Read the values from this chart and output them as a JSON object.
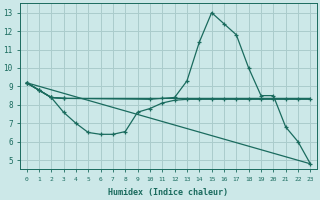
{
  "xlabel": "Humidex (Indice chaleur)",
  "bg_color": "#cce8e8",
  "grid_color": "#aacccc",
  "line_color": "#1a6b5e",
  "xlim": [
    -0.5,
    23.5
  ],
  "ylim": [
    4.5,
    13.5
  ],
  "yticks": [
    5,
    6,
    7,
    8,
    9,
    10,
    11,
    12,
    13
  ],
  "xticks": [
    0,
    1,
    2,
    3,
    4,
    5,
    6,
    7,
    8,
    9,
    10,
    11,
    12,
    13,
    14,
    15,
    16,
    17,
    18,
    19,
    20,
    21,
    22,
    23
  ],
  "series": [
    {
      "x": [
        0,
        1,
        2,
        3,
        10,
        11,
        12,
        13,
        14,
        15,
        16,
        17,
        18,
        19,
        20,
        21,
        22,
        23
      ],
      "y": [
        9.2,
        8.8,
        8.4,
        8.35,
        8.3,
        8.35,
        8.4,
        9.3,
        11.4,
        13.0,
        12.4,
        11.8,
        10.0,
        8.5,
        8.5,
        6.8,
        6.0,
        4.8
      ]
    },
    {
      "x": [
        0,
        1,
        2,
        3,
        23
      ],
      "y": [
        9.2,
        8.8,
        8.4,
        8.35,
        8.35
      ]
    },
    {
      "x": [
        0,
        1,
        2,
        3,
        4,
        5,
        6,
        7,
        8,
        9,
        10,
        11,
        12,
        13,
        14,
        15,
        16,
        17,
        18,
        19,
        20,
        21,
        22,
        23
      ],
      "y": [
        9.2,
        8.8,
        8.4,
        7.6,
        7.0,
        6.5,
        6.4,
        6.4,
        6.55,
        7.6,
        7.8,
        8.1,
        8.25,
        8.3,
        8.3,
        8.3,
        8.3,
        8.3,
        8.3,
        8.3,
        8.3,
        8.3,
        8.3,
        8.3
      ]
    },
    {
      "x": [
        0,
        23
      ],
      "y": [
        9.2,
        4.8
      ]
    }
  ]
}
